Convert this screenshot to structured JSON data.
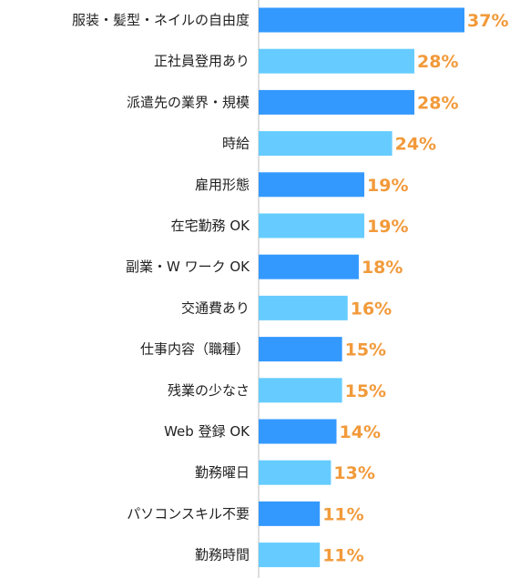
{
  "chart_data": {
    "type": "bar",
    "orientation": "horizontal",
    "categories": [
      "服装・髪型・ネイルの自由度",
      "正社員登用あり",
      "派遣先の業界・規模",
      "時給",
      "雇用形態",
      "在宅勤務 OK",
      "副業・W ワーク OK",
      "交通費あり",
      "仕事内容（職種）",
      "残業の少なさ",
      "Web 登録 OK",
      "勤務曜日",
      "パソコンスキル不要",
      "勤務時間"
    ],
    "values": [
      37,
      28,
      28,
      24,
      19,
      19,
      18,
      16,
      15,
      15,
      14,
      13,
      11,
      11
    ],
    "value_labels": [
      "37%",
      "28%",
      "28%",
      "24%",
      "19%",
      "19%",
      "18%",
      "16%",
      "15%",
      "15%",
      "14%",
      "13%",
      "11%",
      "11%"
    ],
    "unit": "%",
    "title": "",
    "xlabel": "",
    "ylabel": "",
    "xlim": [
      0,
      37
    ],
    "grid": false,
    "legend": "none",
    "colors": {
      "bar_dark": "#3399ff",
      "bar_light": "#66ccff",
      "value_label": "#f29a3a",
      "category_label": "#222222",
      "axis": "#bdbdbd"
    }
  }
}
